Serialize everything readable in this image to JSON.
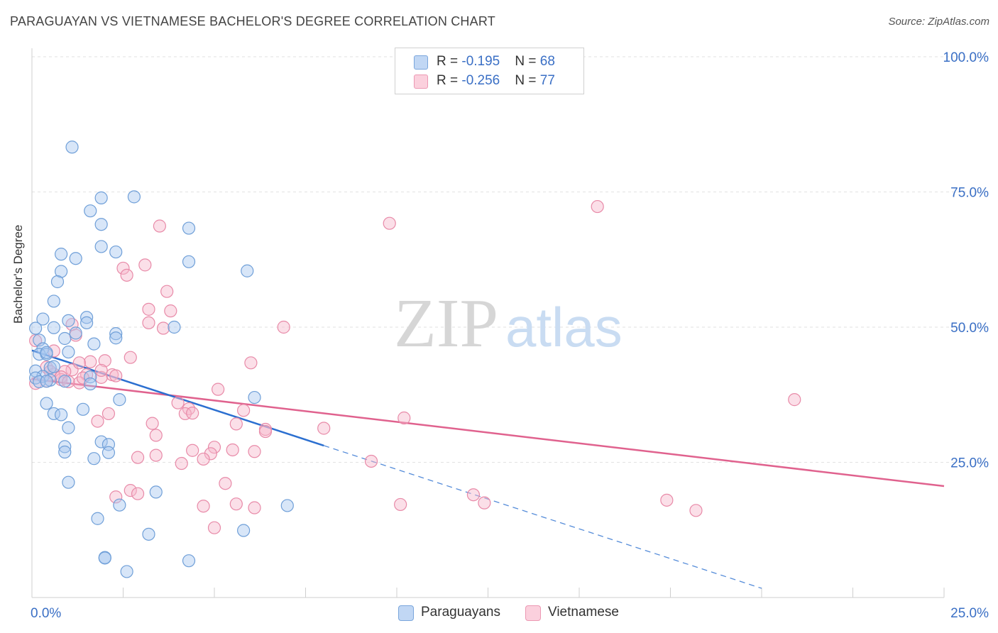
{
  "title": "PARAGUAYAN VS VIETNAMESE BACHELOR'S DEGREE CORRELATION CHART",
  "source": "Source: ZipAtlas.com",
  "watermark": {
    "zip": "ZIP",
    "atlas": "atlas"
  },
  "legend": {
    "series1": {
      "r_label": "R = ",
      "r_value": "-0.195",
      "n_label": "N = ",
      "n_value": "68"
    },
    "series2": {
      "r_label": "R = ",
      "r_value": "-0.256",
      "n_label": "N = ",
      "n_value": "77"
    }
  },
  "bottom_legend": {
    "series1": "Paraguayans",
    "series2": "Vietnamese"
  },
  "colors": {
    "blue_fill": "#a9c8f0",
    "blue_stroke": "#6f9fd8",
    "blue_line": "#2b6fd0",
    "pink_fill": "#f6b8cc",
    "pink_stroke": "#e88aa8",
    "pink_line": "#e0628e",
    "axis_text": "#3a6fc5",
    "grid": "#e2e2e2"
  },
  "chart_data": {
    "type": "scatter",
    "title": "PARAGUAYAN VS VIETNAMESE BACHELOR'S DEGREE CORRELATION CHART",
    "xlabel": "",
    "ylabel": "Bachelor's Degree",
    "xlim": [
      0,
      25
    ],
    "ylim": [
      0,
      100
    ],
    "x_tick_labels": [
      "0.0%",
      "25.0%"
    ],
    "y_ticks": [
      25,
      50,
      75,
      100
    ],
    "y_tick_labels": [
      "25.0%",
      "50.0%",
      "75.0%",
      "100.0%"
    ],
    "grid": true,
    "series": [
      {
        "name": "Paraguayans",
        "r": -0.195,
        "n": 68,
        "trend": {
          "x0": 0,
          "y0": 45.7,
          "x1": 8.0,
          "y1": 28.1,
          "dash_to_x": 20.0
        },
        "points": [
          [
            1.1,
            83.3
          ],
          [
            1.9,
            73.9
          ],
          [
            2.8,
            74.1
          ],
          [
            1.6,
            71.5
          ],
          [
            1.9,
            69.0
          ],
          [
            4.3,
            68.3
          ],
          [
            1.9,
            64.9
          ],
          [
            0.8,
            63.5
          ],
          [
            2.3,
            63.9
          ],
          [
            1.2,
            62.7
          ],
          [
            4.3,
            62.1
          ],
          [
            0.8,
            60.3
          ],
          [
            5.9,
            60.4
          ],
          [
            0.7,
            58.4
          ],
          [
            0.6,
            54.8
          ],
          [
            0.3,
            51.5
          ],
          [
            1.0,
            51.2
          ],
          [
            1.5,
            51.8
          ],
          [
            0.1,
            49.8
          ],
          [
            0.6,
            49.9
          ],
          [
            1.5,
            50.8
          ],
          [
            3.9,
            50.0
          ],
          [
            1.2,
            48.9
          ],
          [
            2.3,
            48.8
          ],
          [
            0.2,
            47.6
          ],
          [
            0.9,
            47.9
          ],
          [
            2.3,
            48.0
          ],
          [
            1.7,
            46.9
          ],
          [
            0.3,
            46.0
          ],
          [
            0.2,
            45.0
          ],
          [
            1.0,
            45.4
          ],
          [
            0.4,
            45.0
          ],
          [
            0.5,
            42.5
          ],
          [
            0.6,
            42.7
          ],
          [
            0.1,
            41.9
          ],
          [
            0.3,
            40.9
          ],
          [
            0.1,
            40.6
          ],
          [
            0.5,
            40.2
          ],
          [
            1.6,
            40.8
          ],
          [
            1.6,
            39.5
          ],
          [
            0.2,
            39.9
          ],
          [
            0.4,
            40.0
          ],
          [
            6.1,
            37.0
          ],
          [
            2.4,
            36.6
          ],
          [
            0.4,
            35.9
          ],
          [
            1.4,
            34.8
          ],
          [
            0.6,
            34.0
          ],
          [
            0.8,
            33.8
          ],
          [
            1.0,
            31.4
          ],
          [
            1.9,
            28.8
          ],
          [
            2.1,
            28.3
          ],
          [
            0.9,
            27.9
          ],
          [
            0.9,
            26.9
          ],
          [
            2.1,
            26.8
          ],
          [
            1.7,
            25.7
          ],
          [
            1.0,
            21.3
          ],
          [
            3.4,
            19.5
          ],
          [
            7.0,
            17.0
          ],
          [
            2.4,
            17.1
          ],
          [
            1.8,
            14.6
          ],
          [
            5.8,
            12.4
          ],
          [
            3.2,
            11.7
          ],
          [
            2.0,
            7.4
          ],
          [
            2.0,
            7.3
          ],
          [
            4.3,
            6.8
          ],
          [
            2.6,
            4.8
          ],
          [
            0.4,
            45.3
          ],
          [
            0.9,
            40.0
          ]
        ]
      },
      {
        "name": "Vietnamese",
        "r": -0.256,
        "n": 77,
        "trend": {
          "x0": 0,
          "y0": 40.4,
          "x1": 25.0,
          "y1": 20.6
        },
        "points": [
          [
            15.5,
            72.3
          ],
          [
            9.8,
            69.2
          ],
          [
            3.5,
            68.7
          ],
          [
            3.1,
            61.5
          ],
          [
            2.5,
            60.9
          ],
          [
            2.6,
            59.6
          ],
          [
            3.7,
            56.6
          ],
          [
            3.2,
            53.3
          ],
          [
            3.8,
            53.0
          ],
          [
            3.2,
            50.8
          ],
          [
            3.6,
            49.8
          ],
          [
            6.9,
            50.0
          ],
          [
            1.1,
            50.5
          ],
          [
            1.2,
            48.5
          ],
          [
            0.1,
            47.5
          ],
          [
            2.7,
            44.4
          ],
          [
            2.0,
            43.8
          ],
          [
            6.0,
            43.4
          ],
          [
            1.6,
            43.6
          ],
          [
            0.4,
            42.6
          ],
          [
            1.1,
            42.1
          ],
          [
            0.9,
            41.8
          ],
          [
            0.6,
            41.3
          ],
          [
            1.5,
            41.2
          ],
          [
            2.2,
            41.2
          ],
          [
            0.8,
            40.3
          ],
          [
            1.9,
            40.7
          ],
          [
            1.3,
            39.7
          ],
          [
            0.4,
            40.0
          ],
          [
            0.1,
            39.6
          ],
          [
            5.1,
            38.5
          ],
          [
            20.9,
            36.6
          ],
          [
            4.0,
            36.0
          ],
          [
            4.3,
            34.9
          ],
          [
            5.8,
            34.6
          ],
          [
            4.2,
            34.0
          ],
          [
            4.4,
            34.1
          ],
          [
            2.1,
            34.0
          ],
          [
            1.8,
            32.6
          ],
          [
            10.2,
            33.2
          ],
          [
            3.3,
            32.2
          ],
          [
            5.6,
            32.1
          ],
          [
            6.4,
            31.1
          ],
          [
            8.0,
            31.3
          ],
          [
            6.4,
            30.7
          ],
          [
            3.4,
            30.0
          ],
          [
            5.5,
            27.3
          ],
          [
            6.1,
            27.0
          ],
          [
            4.4,
            27.2
          ],
          [
            5.0,
            27.8
          ],
          [
            4.9,
            26.6
          ],
          [
            3.4,
            26.3
          ],
          [
            4.7,
            25.6
          ],
          [
            2.9,
            25.9
          ],
          [
            9.3,
            25.2
          ],
          [
            4.1,
            24.8
          ],
          [
            5.3,
            21.1
          ],
          [
            2.7,
            19.8
          ],
          [
            2.9,
            19.2
          ],
          [
            2.3,
            18.6
          ],
          [
            12.1,
            19.0
          ],
          [
            12.4,
            17.5
          ],
          [
            17.4,
            18.0
          ],
          [
            18.2,
            16.1
          ],
          [
            10.1,
            17.2
          ],
          [
            4.7,
            16.9
          ],
          [
            5.6,
            17.3
          ],
          [
            6.1,
            16.6
          ],
          [
            5.0,
            12.9
          ],
          [
            0.8,
            40.8
          ],
          [
            1.4,
            40.6
          ],
          [
            0.5,
            41.8
          ],
          [
            1.9,
            42.0
          ],
          [
            1.0,
            39.9
          ],
          [
            2.3,
            41.0
          ],
          [
            1.3,
            43.4
          ],
          [
            0.6,
            45.6
          ]
        ]
      }
    ]
  }
}
